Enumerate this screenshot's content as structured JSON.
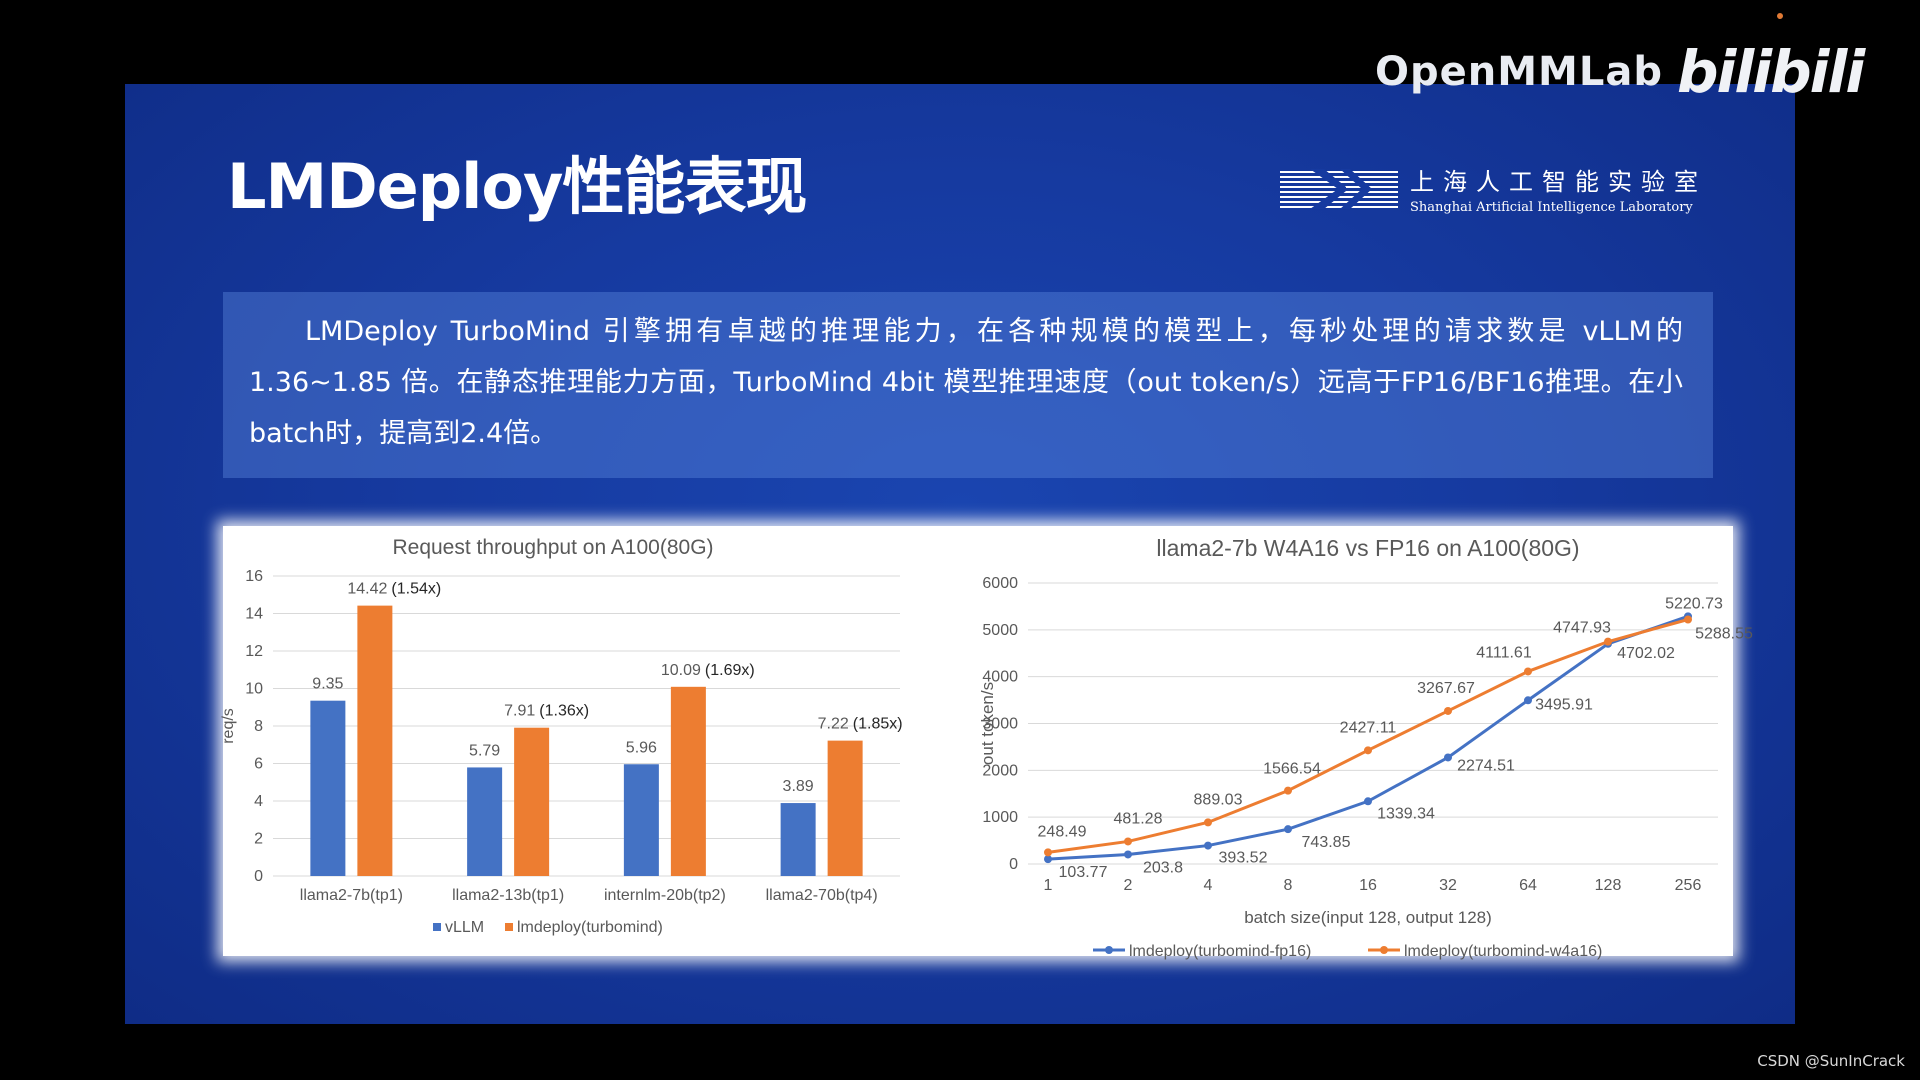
{
  "brand": {
    "name": "OpenMMLab",
    "platform": "bilibili"
  },
  "slide": {
    "title": "LMDeploy性能表现",
    "lab_cn": "上海人工智能实验室",
    "lab_en": "Shanghai Artificial Intelligence Laboratory",
    "description": "LMDeploy TurboMind 引擎拥有卓越的推理能力，在各种规模的模型上，每秒处理的请求数是 vLLM的 1.36~1.85 倍。在静态推理能力方面，TurboMind 4bit 模型推理速度（out token/s）远高于FP16/BF16推理。在小batch时，提高到2.4倍。"
  },
  "credit": "CSDN @SunInCrack",
  "chart_data": [
    {
      "type": "bar",
      "title": "Request throughput on A100(80G)",
      "ylabel": "req/s",
      "xlabel": "",
      "ylim": [
        0,
        16
      ],
      "yticks": [
        0,
        2,
        4,
        6,
        8,
        10,
        12,
        14,
        16
      ],
      "categories": [
        "llama2-7b(tp1)",
        "llama2-13b(tp1)",
        "internlm-20b(tp2)",
        "llama2-70b(tp4)"
      ],
      "series": [
        {
          "name": "vLLM",
          "color": "#4472c4",
          "values": [
            9.35,
            5.79,
            5.96,
            3.89
          ],
          "labels": [
            "9.35",
            "5.79",
            "5.96",
            "3.89"
          ]
        },
        {
          "name": "lmdeploy(turbomind)",
          "color": "#ed7d31",
          "values": [
            14.42,
            7.91,
            10.09,
            7.22
          ],
          "labels": [
            "14.42",
            "7.91",
            "10.09",
            "7.22"
          ]
        }
      ],
      "speedups": [
        "(1.54x)",
        "(1.36x)",
        "(1.69x)",
        "(1.85x)"
      ],
      "grid": true,
      "legend": "bottom"
    },
    {
      "type": "line",
      "title": "llama2-7b W4A16 vs FP16 on A100(80G)",
      "ylabel": "out token/s",
      "xlabel": "batch size(input 128, output 128)",
      "ylim": [
        0,
        6000
      ],
      "yticks": [
        0,
        1000,
        2000,
        3000,
        4000,
        5000,
        6000
      ],
      "categories": [
        "1",
        "2",
        "4",
        "8",
        "16",
        "32",
        "64",
        "128",
        "256"
      ],
      "series": [
        {
          "name": "lmdeploy(turbomind-fp16)",
          "color": "#4472c4",
          "values": [
            103.77,
            203.8,
            393.52,
            743.85,
            1339.34,
            2274.51,
            3495.91,
            4702.02,
            5288.55
          ],
          "labels": [
            "103.77",
            "203.8",
            "393.52",
            "743.85",
            "1339.34",
            "2274.51",
            "3495.91",
            "4702.02",
            "5288.55"
          ]
        },
        {
          "name": "lmdeploy(turbomind-w4a16)",
          "color": "#ed7d31",
          "values": [
            248.49,
            481.28,
            889.03,
            1566.54,
            2427.11,
            3267.67,
            4111.61,
            4747.93,
            5220.73
          ],
          "labels": [
            "248.49",
            "481.28",
            "889.03",
            "1566.54",
            "2427.11",
            "3267.67",
            "4111.61",
            "4747.93",
            "5220.73"
          ]
        }
      ],
      "grid": true,
      "legend": "bottom"
    }
  ]
}
